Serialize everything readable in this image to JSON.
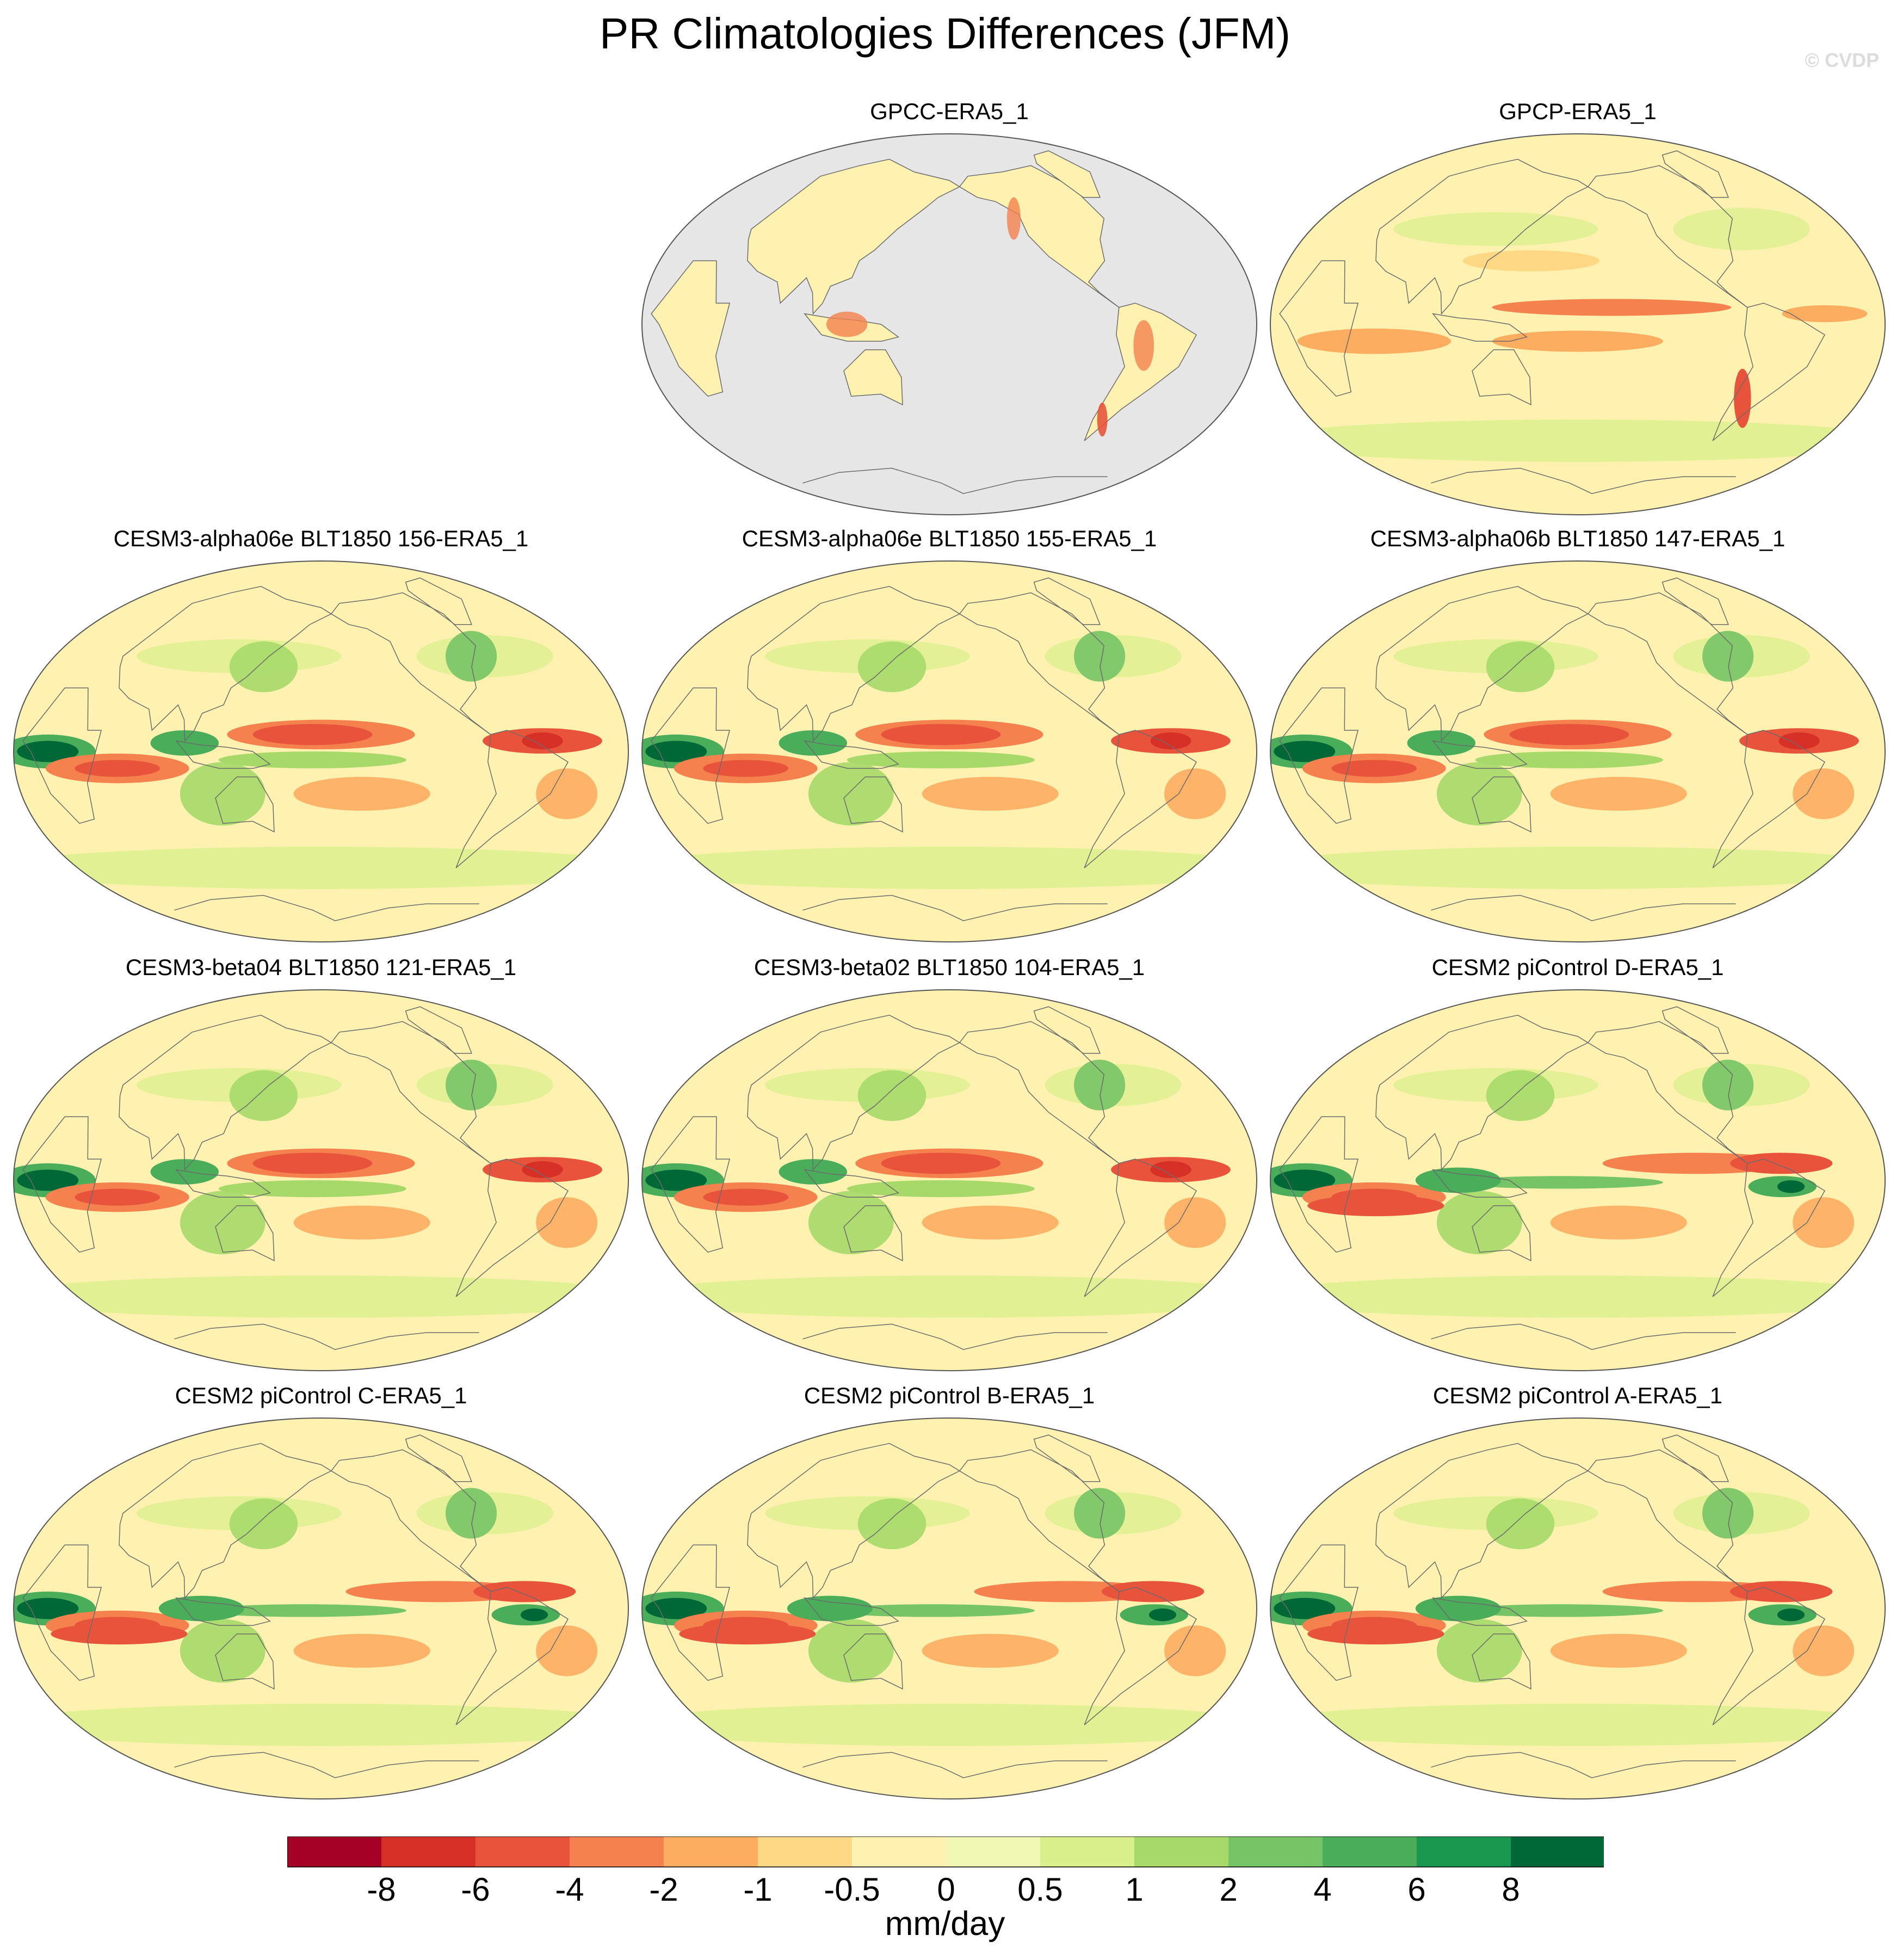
{
  "title": "PR Climatologies Differences (JFM)",
  "watermark": "© CVDP",
  "panels": [
    {
      "label": "GPCC-ERA5_1",
      "variant": "obs_land"
    },
    {
      "label": "GPCP-ERA5_1",
      "variant": "obs"
    },
    {
      "label": "CESM3-alpha06e BLT1850 156-ERA5_1",
      "variant": "model3"
    },
    {
      "label": "CESM3-alpha06e BLT1850 155-ERA5_1",
      "variant": "model3"
    },
    {
      "label": "CESM3-alpha06b BLT1850 147-ERA5_1",
      "variant": "model3"
    },
    {
      "label": "CESM3-beta04 BLT1850 121-ERA5_1",
      "variant": "model3"
    },
    {
      "label": "CESM3-beta02 BLT1850 104-ERA5_1",
      "variant": "model3"
    },
    {
      "label": "CESM2 piControl D-ERA5_1",
      "variant": "model2"
    },
    {
      "label": "CESM2 piControl C-ERA5_1",
      "variant": "model2"
    },
    {
      "label": "CESM2 piControl B-ERA5_1",
      "variant": "model2"
    },
    {
      "label": "CESM2 piControl A-ERA5_1",
      "variant": "model2"
    }
  ],
  "colorbar": {
    "colors": [
      "#a50026",
      "#d73027",
      "#e8543b",
      "#f4814e",
      "#fdad60",
      "#fed884",
      "#fff2b0",
      "#f1f8b4",
      "#d9ef8b",
      "#a6d96a",
      "#75c465",
      "#49ad5a",
      "#1a9850",
      "#006837"
    ],
    "tick_labels": [
      "-8",
      "-6",
      "-4",
      "-2",
      "-1",
      "-0.5",
      "0",
      "0.5",
      "1",
      "2",
      "4",
      "6",
      "8"
    ],
    "units": "mm/day"
  },
  "land_mask_color": "#e6e6e6"
}
